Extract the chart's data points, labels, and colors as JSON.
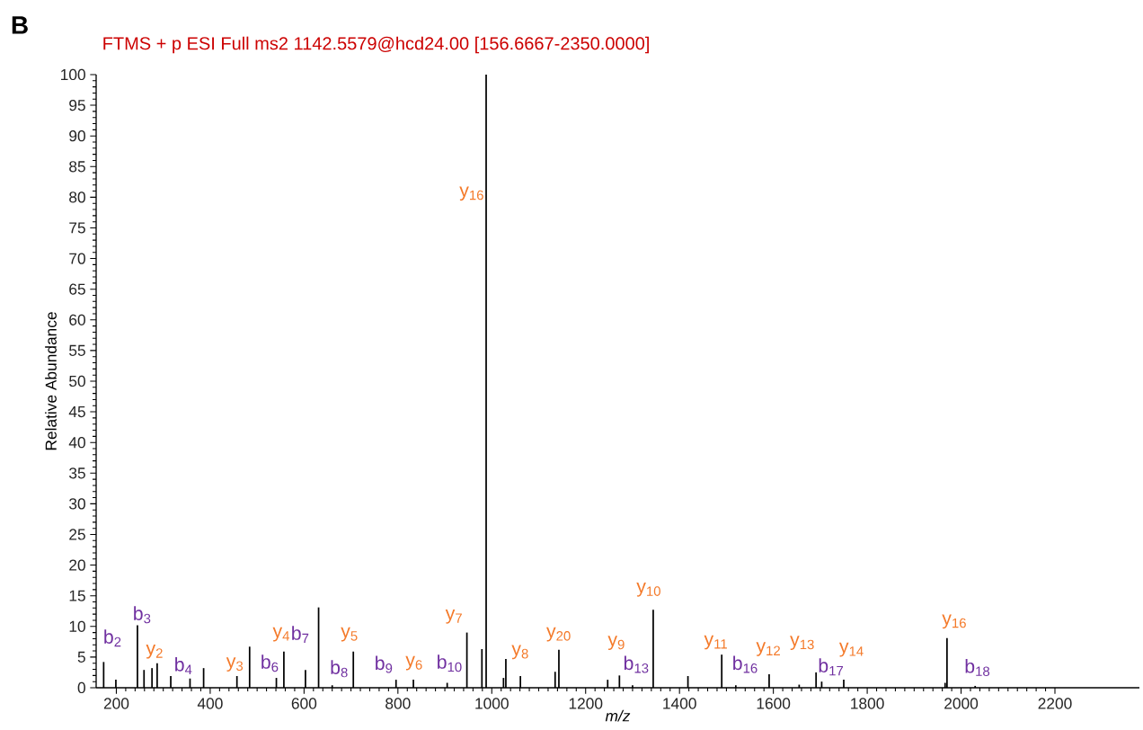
{
  "chart_data": {
    "type": "bar",
    "title": "FTMS + p ESI Full ms2 1142.5579@hcd24.00 [156.6667-2350.0000]",
    "xlabel": "m/z",
    "ylabel": "Relative  Abundance",
    "color": "#000000",
    "x": [
      173,
      199,
      245,
      259,
      276,
      287,
      316,
      357,
      386,
      457,
      484,
      541,
      557,
      603,
      631,
      660,
      705,
      796,
      833,
      905,
      947,
      979,
      988,
      1025,
      1030,
      1061,
      1135,
      1143,
      1247,
      1272,
      1300,
      1344,
      1418,
      1490,
      1520,
      1591,
      1655,
      1691,
      1703,
      1750,
      1966,
      1970,
      2030
    ],
    "values": [
      4.2,
      1.3,
      10.2,
      2.9,
      3.2,
      4.0,
      1.9,
      1.5,
      3.2,
      1.9,
      6.7,
      1.6,
      5.9,
      2.9,
      13.1,
      0.4,
      5.9,
      1.3,
      1.3,
      0.8,
      9.0,
      6.3,
      100,
      1.6,
      4.7,
      1.9,
      2.6,
      6.2,
      1.3,
      2.0,
      0.4,
      12.7,
      1.9,
      5.4,
      0.4,
      2.2,
      0.5,
      2.5,
      1.0,
      1.3,
      0.8,
      8.1,
      0.3
    ],
    "xlim": [
      157,
      2380
    ],
    "ylim": [
      0,
      100
    ],
    "xticks": [
      200,
      400,
      600,
      800,
      1000,
      1200,
      1400,
      1600,
      1800,
      2000,
      2200
    ],
    "yticks": [
      0,
      5,
      10,
      15,
      20,
      25,
      30,
      35,
      40,
      45,
      50,
      55,
      60,
      65,
      70,
      75,
      80,
      85,
      90,
      95,
      100
    ],
    "grid": false,
    "annotations": [
      "B",
      {
        "text": "b$_{2}$",
        "x": 173,
        "y": 4.2
      },
      {
        "text": "b$_{3}$",
        "x": 245,
        "y": 10.2
      },
      {
        "text": "y$_{2}$",
        "x": 287,
        "y": 4.0
      },
      {
        "text": "b$_{4}$",
        "x": 357,
        "y": 1.5
      },
      {
        "text": "y$_{3}$",
        "x": 457,
        "y": 1.9
      },
      {
        "text": "b$_{6}$",
        "x": 541,
        "y": 1.6
      },
      {
        "text": "y$_{4}$",
        "x": 557,
        "y": 5.9
      },
      {
        "text": "b$_{7}$",
        "x": 603,
        "y": 2.9
      },
      {
        "text": "b$_{8}$",
        "x": 660,
        "y": 0.4
      },
      {
        "text": "y$_{5}$",
        "x": 705,
        "y": 5.9
      },
      {
        "text": "b$_{9}$",
        "x": 796,
        "y": 1.3
      },
      {
        "text": "y$_{6}$",
        "x": 833,
        "y": 1.3
      },
      {
        "text": "b$_{10}$",
        "x": 905,
        "y": 0.8
      },
      {
        "text": "y$_{7}$",
        "x": 947,
        "y": 9.0
      },
      {
        "text": "y$_{16}$",
        "x": 988,
        "y": 80.6
      },
      {
        "text": "y$_{8}$",
        "x": 1061,
        "y": 1.9
      },
      {
        "text": "y$_{20}$",
        "x": 1143,
        "y": 6.2
      },
      {
        "text": "y$_{9}$",
        "x": 1272,
        "y": 2.0
      },
      {
        "text": "b$_{13}$",
        "x": 1300,
        "y": 0.4
      },
      {
        "text": "y$_{10}$",
        "x": 1344,
        "y": 12.7
      },
      {
        "text": "y$_{11}$",
        "x": 1490,
        "y": 5.4
      },
      {
        "text": "b$_{16}$",
        "x": 1520,
        "y": 0.4
      },
      {
        "text": "y$_{12}$",
        "x": 1591,
        "y": 2.2
      },
      {
        "text": "y$_{13}$",
        "x": 1655,
        "y": 0.5
      },
      {
        "text": "b$_{17}$",
        "x": 1691,
        "y": 2.5
      },
      {
        "text": "y$_{14}$",
        "x": 1750,
        "y": 1.3
      },
      {
        "text": "y$_{16}$",
        "x": 1970,
        "y": 8.1
      },
      {
        "text": "b$_{18}$",
        "x": 2030,
        "y": 0.3
      }
    ]
  }
}
